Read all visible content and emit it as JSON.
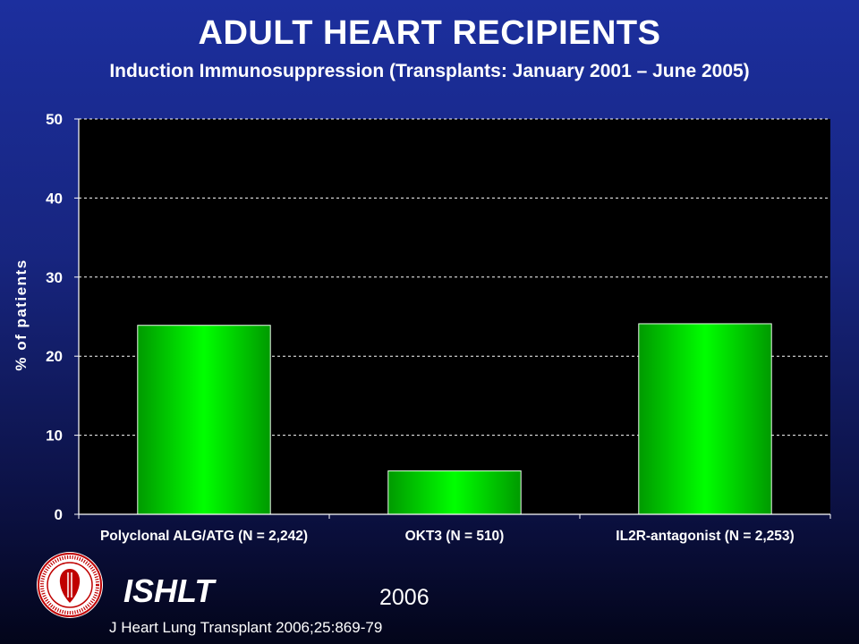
{
  "header": {
    "title": "ADULT HEART RECIPIENTS",
    "subtitle": "Induction Immunosuppression (Transplants: January 2001 – June 2005)"
  },
  "footer": {
    "organization": "ISHLT",
    "year": "2006",
    "citation": "J Heart Lung Transplant 2006;25:869-79",
    "logo_icon": "ishlt-seal-icon"
  },
  "colors": {
    "background_top": "#1c2f9e",
    "background_bottom": "#03051a",
    "plot_background": "#000000",
    "bar_edge": "#00a000",
    "bar_center": "#00ff00",
    "grid": "#ffffff"
  },
  "chart_data": {
    "type": "bar",
    "title": "",
    "xlabel": "",
    "ylabel": "% of patients",
    "categories": [
      "Polyclonal ALG/ATG (N = 2,242)",
      "OKT3 (N = 510)",
      "IL2R-antagonist (N = 2,253)"
    ],
    "values": [
      23.9,
      5.5,
      24.1
    ],
    "ylim": [
      0,
      50
    ],
    "yticks": [
      "0",
      "10",
      "20",
      "30",
      "40",
      "50"
    ],
    "grid": true,
    "grid_style": "dashed",
    "legend": "none"
  }
}
